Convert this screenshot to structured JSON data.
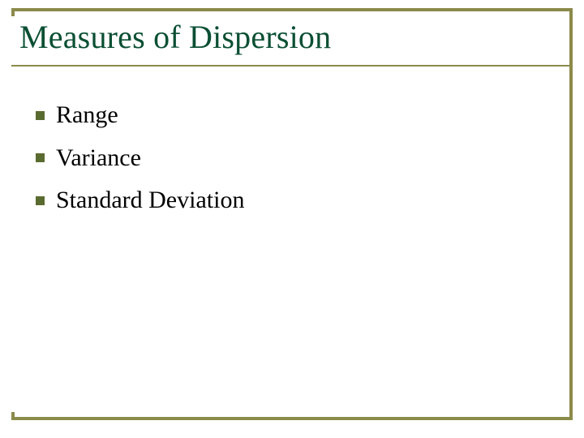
{
  "slide": {
    "title": "Measures of Dispersion",
    "title_color": "#0a4f33",
    "title_fontsize": 40,
    "frame_color": "#8b8b4a",
    "background_color": "#ffffff",
    "bullets": {
      "color": "#5a6b2f",
      "size": 11,
      "text_color": "#000000",
      "text_fontsize": 30,
      "items": [
        {
          "label": "Range"
        },
        {
          "label": "Variance"
        },
        {
          "label": "Standard Deviation"
        }
      ]
    }
  }
}
